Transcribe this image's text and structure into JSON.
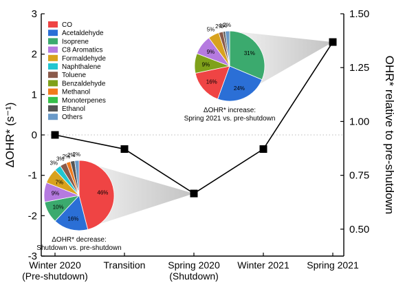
{
  "chart_data": {
    "type": "line",
    "categories": [
      [
        "Winter 2020",
        "(Pre-shutdown)"
      ],
      [
        "Transition"
      ],
      [
        "Spring 2020",
        "(Shutdown)"
      ],
      [
        "Winter 2021"
      ],
      [
        "Spring 2021"
      ]
    ],
    "series": [
      {
        "values": [
          0,
          -0.35,
          -1.45,
          -0.35,
          2.3
        ],
        "color": "#000000"
      }
    ],
    "y_left": {
      "label": "ΔOHR* (s⁻¹)",
      "lim": [
        -3,
        3
      ],
      "ticks": [
        "-3",
        "-2",
        "-1",
        "0",
        "1",
        "2",
        "3"
      ]
    },
    "y_right": {
      "label": "OHR* relative to pre-shutdown",
      "lim": [
        0.375,
        1.5
      ],
      "ticks": [
        "0.50",
        "0.75",
        "1.00",
        "1.25",
        "1.50"
      ]
    },
    "reference_line": {
      "y": 0,
      "style": "dotted"
    },
    "legend": {
      "placement": "top-left",
      "entries": [
        {
          "label": "CO",
          "color": "#EF4444"
        },
        {
          "label": "Acetaldehyde",
          "color": "#2B6FD6"
        },
        {
          "label": "Isoprene",
          "color": "#3BAA6E"
        },
        {
          "label": "C8 Aromatics",
          "color": "#B57AE0"
        },
        {
          "label": "Formaldehyde",
          "color": "#D8A21E"
        },
        {
          "label": "Naphthalene",
          "color": "#22C6D0"
        },
        {
          "label": "Toluene",
          "color": "#8A5A4A"
        },
        {
          "label": "Benzaldehyde",
          "color": "#7FA11A"
        },
        {
          "label": "Methanol",
          "color": "#F07A1C"
        },
        {
          "label": "Monoterpenes",
          "color": "#35C04A"
        },
        {
          "label": "Ethanol",
          "color": "#555555"
        },
        {
          "label": "Others",
          "color": "#6A9AC8"
        }
      ]
    },
    "pies": [
      {
        "name": "increase",
        "caption": [
          "ΔOHR* increase:",
          "Spring 2021 vs. pre-shutdown"
        ],
        "slices": [
          {
            "label": "31%",
            "value": 31,
            "color": "#3BAA6E"
          },
          {
            "label": "24%",
            "value": 24,
            "color": "#2B6FD6"
          },
          {
            "label": "16%",
            "value": 16,
            "color": "#EF4444"
          },
          {
            "label": "9%",
            "value": 9,
            "color": "#7FA11A"
          },
          {
            "label": "9%",
            "value": 9,
            "color": "#B57AE0"
          },
          {
            "label": "5%",
            "value": 5,
            "color": "#D8A21E"
          },
          {
            "label": "2%",
            "value": 2,
            "color": "#8A5A4A"
          },
          {
            "label": "1%",
            "value": 1,
            "color": "#555555"
          },
          {
            "label": "2%",
            "value": 2,
            "color": "#6A9AC8"
          }
        ]
      },
      {
        "name": "decrease",
        "caption": [
          "ΔOHR* decrease:",
          "Shutdown vs. pre-shutdown"
        ],
        "slices": [
          {
            "label": "46%",
            "value": 46,
            "color": "#EF4444"
          },
          {
            "label": "16%",
            "value": 16,
            "color": "#2B6FD6"
          },
          {
            "label": "10%",
            "value": 10,
            "color": "#3BAA6E"
          },
          {
            "label": "9%",
            "value": 9,
            "color": "#B57AE0"
          },
          {
            "label": "7%",
            "value": 7,
            "color": "#D8A21E"
          },
          {
            "label": "3%",
            "value": 3,
            "color": "#22C6D0"
          },
          {
            "label": "3%",
            "value": 3,
            "color": "#8A5A4A"
          },
          {
            "label": "2%",
            "value": 2,
            "color": "#F07A1C"
          },
          {
            "label": "2%",
            "value": 2,
            "color": "#555555"
          },
          {
            "label": "2%",
            "value": 2,
            "color": "#6A9AC8"
          }
        ]
      }
    ]
  }
}
